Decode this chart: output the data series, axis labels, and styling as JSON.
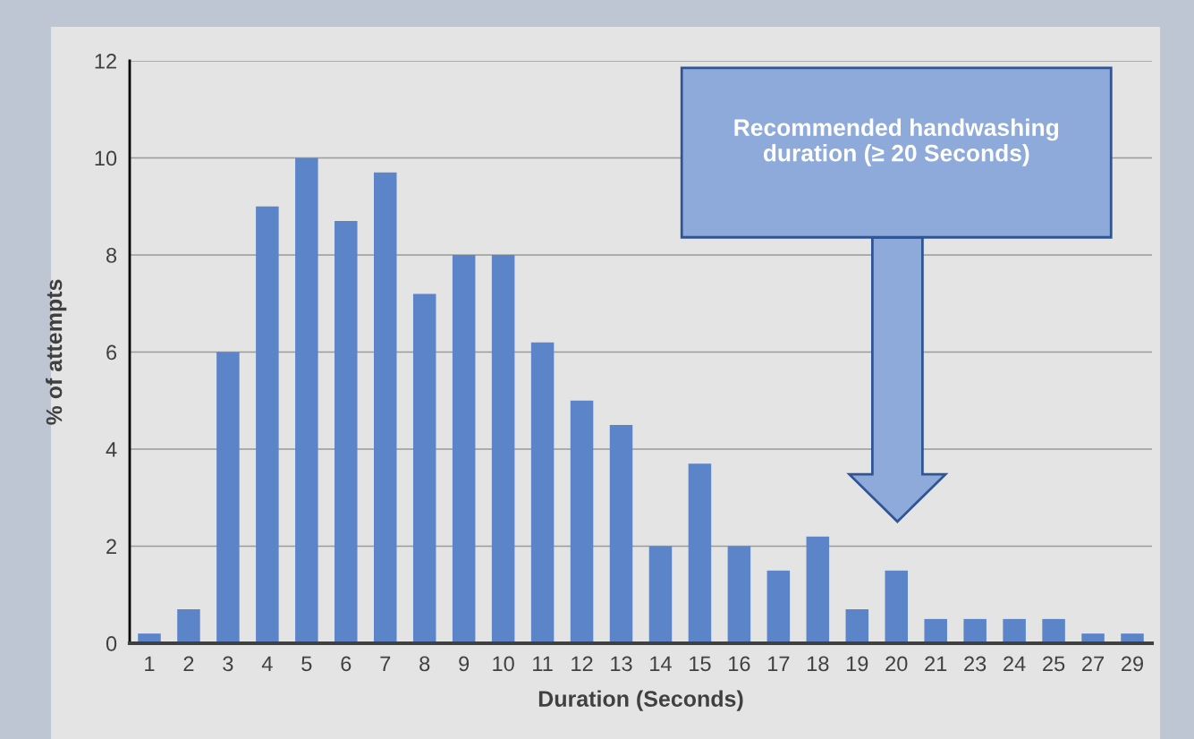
{
  "chart_data": {
    "type": "bar",
    "xlabel": "Duration (Seconds)",
    "ylabel": "% of attempts",
    "categories": [
      "1",
      "2",
      "3",
      "4",
      "5",
      "6",
      "7",
      "8",
      "9",
      "10",
      "11",
      "12",
      "13",
      "14",
      "15",
      "16",
      "17",
      "18",
      "19",
      "20",
      "21",
      "23",
      "24",
      "25",
      "27",
      "29"
    ],
    "values": [
      0.2,
      0.7,
      6,
      9,
      10,
      8.7,
      9.7,
      7.2,
      8,
      8,
      6.2,
      5,
      4.5,
      2,
      3.7,
      2,
      1.5,
      2.2,
      0.7,
      1.5,
      0.5,
      0.5,
      0.5,
      0.5,
      0.2,
      0.2
    ],
    "color": "#5b84c9",
    "ylim": [
      0,
      12
    ],
    "yticks": [
      0,
      2,
      4,
      6,
      8,
      10,
      12
    ],
    "grid": "y",
    "annotations": [
      "Recommended handwashing duration (≥ 20 Seconds)"
    ]
  }
}
